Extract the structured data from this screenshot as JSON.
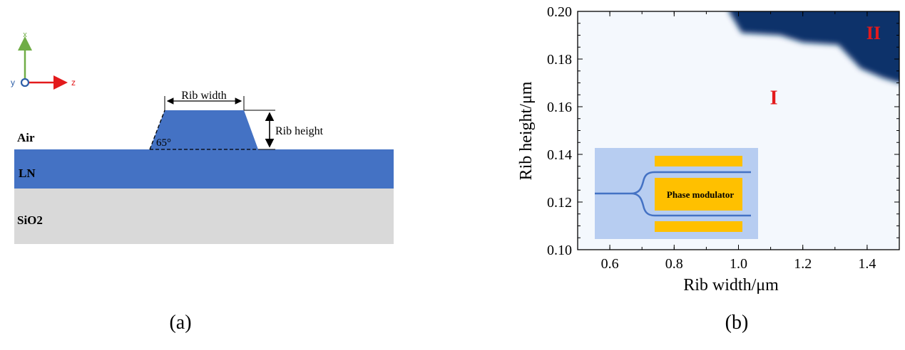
{
  "panel_a": {
    "caption": "(a)",
    "axes": {
      "x_label": "x",
      "y_label": "y",
      "z_label": "z",
      "x_color": "#70ad47",
      "z_color": "#e31a1c",
      "y_color": "#2e5fa8"
    },
    "labels": {
      "rib_width": "Rib width",
      "rib_height": "Rib height",
      "angle": "65°",
      "air": "Air",
      "ln": "LN",
      "sio2": "SiO2"
    },
    "colors": {
      "ln": "#4472c4",
      "sio2": "#d9d9d9"
    }
  },
  "panel_b": {
    "caption": "(b)",
    "chart_data": {
      "type": "heatmap",
      "xlabel": "Rib width/μm",
      "ylabel": "Rib height/μm",
      "xlim": [
        0.5,
        1.5
      ],
      "ylim": [
        0.1,
        0.2
      ],
      "xticks": [
        "0.6",
        "0.8",
        "1.0",
        "1.2",
        "1.4"
      ],
      "yticks": [
        "0.10",
        "0.12",
        "0.14",
        "0.16",
        "0.18",
        "0.20"
      ],
      "regions": [
        {
          "label": "I",
          "label_at": [
            1.11,
            0.164
          ]
        },
        {
          "label": "II",
          "label_at": [
            1.42,
            0.191
          ]
        }
      ],
      "region_II_boundary": [
        [
          0.97,
          0.2
        ],
        [
          1.01,
          0.191
        ],
        [
          1.13,
          0.19
        ],
        [
          1.2,
          0.187
        ],
        [
          1.31,
          0.186
        ],
        [
          1.38,
          0.176
        ],
        [
          1.45,
          0.172
        ],
        [
          1.5,
          0.17
        ]
      ],
      "colors": {
        "region_I": "#f4f8fd",
        "region_II": "#08306b"
      },
      "inset": {
        "label": "Phase modulator"
      }
    }
  }
}
